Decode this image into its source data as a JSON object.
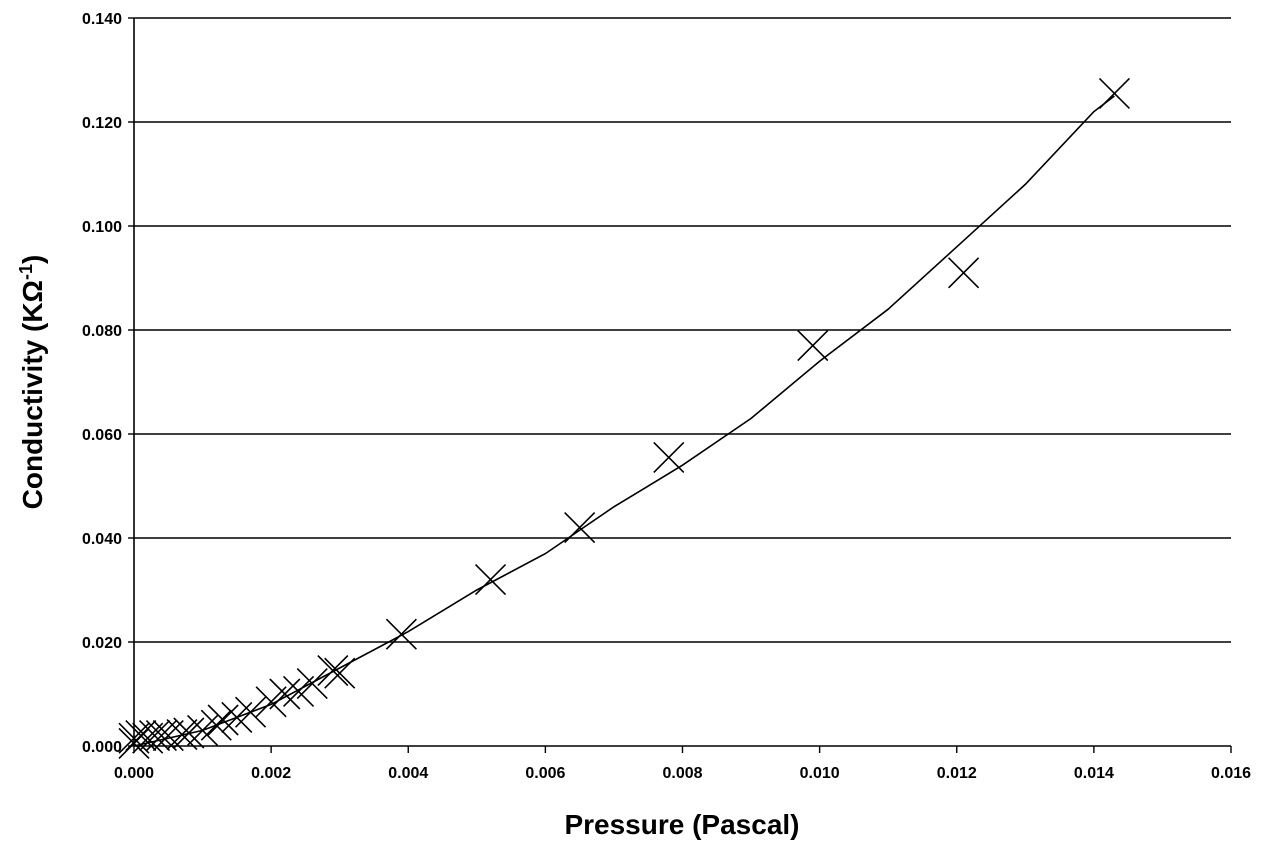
{
  "chart_data": {
    "type": "scatter",
    "title": "",
    "xlabel": "Pressure (Pascal)",
    "ylabel": "Conductivity (KΩ",
    "ylabel_superscript": "-1",
    "ylabel_close": ")",
    "xlim": [
      0,
      0.016
    ],
    "ylim": [
      0,
      0.14
    ],
    "x_ticks": [
      "0.000",
      "0.002",
      "0.004",
      "0.006",
      "0.008",
      "0.010",
      "0.012",
      "0.014",
      "0.016"
    ],
    "y_ticks": [
      "0.000",
      "0.020",
      "0.040",
      "0.060",
      "0.080",
      "0.100",
      "0.120",
      "0.140"
    ],
    "grid": "horizontal",
    "marker": "x",
    "series": [
      {
        "points": [
          {
            "x": 0.0,
            "y": 0.0005
          },
          {
            "x": 0.0,
            "y": 0.0015
          },
          {
            "x": 0.0001,
            "y": 0.002
          },
          {
            "x": 0.0002,
            "y": 0.0015
          },
          {
            "x": 0.0003,
            "y": 0.002
          },
          {
            "x": 0.0004,
            "y": 0.002
          },
          {
            "x": 0.0005,
            "y": 0.002
          },
          {
            "x": 0.0007,
            "y": 0.0022
          },
          {
            "x": 0.0008,
            "y": 0.0025
          },
          {
            "x": 0.001,
            "y": 0.003
          },
          {
            "x": 0.0012,
            "y": 0.004
          },
          {
            "x": 0.0013,
            "y": 0.005
          },
          {
            "x": 0.0015,
            "y": 0.0055
          },
          {
            "x": 0.0017,
            "y": 0.0065
          },
          {
            "x": 0.002,
            "y": 0.0085
          },
          {
            "x": 0.0022,
            "y": 0.01
          },
          {
            "x": 0.0024,
            "y": 0.0105
          },
          {
            "x": 0.0026,
            "y": 0.012
          },
          {
            "x": 0.0029,
            "y": 0.0145
          },
          {
            "x": 0.003,
            "y": 0.014
          },
          {
            "x": 0.0039,
            "y": 0.0215
          },
          {
            "x": 0.0052,
            "y": 0.032
          },
          {
            "x": 0.0065,
            "y": 0.042
          },
          {
            "x": 0.0078,
            "y": 0.0555
          },
          {
            "x": 0.0099,
            "y": 0.077
          },
          {
            "x": 0.0121,
            "y": 0.091
          },
          {
            "x": 0.0143,
            "y": 0.1255
          }
        ],
        "fit_line": [
          {
            "x": 0.0,
            "y": 0.0
          },
          {
            "x": 0.001,
            "y": 0.003
          },
          {
            "x": 0.002,
            "y": 0.008
          },
          {
            "x": 0.003,
            "y": 0.015
          },
          {
            "x": 0.004,
            "y": 0.022
          },
          {
            "x": 0.005,
            "y": 0.03
          },
          {
            "x": 0.006,
            "y": 0.037
          },
          {
            "x": 0.007,
            "y": 0.046
          },
          {
            "x": 0.008,
            "y": 0.054
          },
          {
            "x": 0.009,
            "y": 0.063
          },
          {
            "x": 0.01,
            "y": 0.074
          },
          {
            "x": 0.011,
            "y": 0.084
          },
          {
            "x": 0.012,
            "y": 0.096
          },
          {
            "x": 0.013,
            "y": 0.108
          },
          {
            "x": 0.014,
            "y": 0.122
          },
          {
            "x": 0.0143,
            "y": 0.125
          }
        ]
      }
    ]
  }
}
